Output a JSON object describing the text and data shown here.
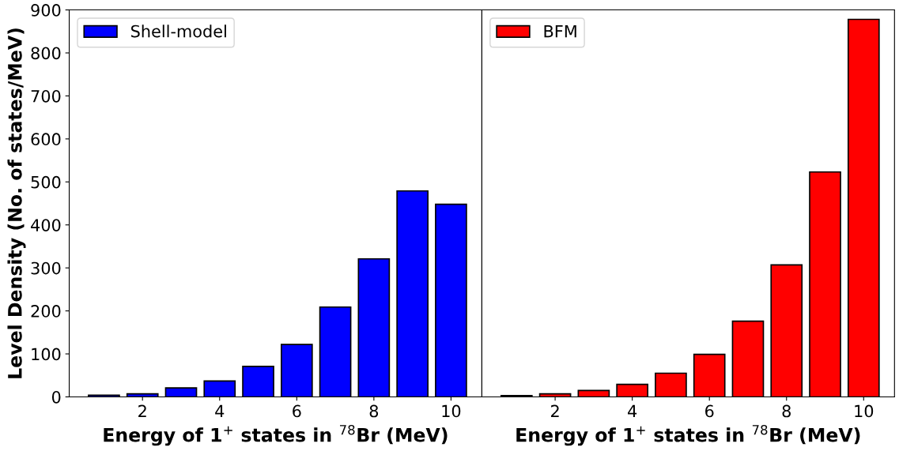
{
  "chart_data": [
    {
      "type": "bar",
      "x": [
        1,
        2,
        3,
        4,
        5,
        6,
        7,
        8,
        9,
        10
      ],
      "xlabel": "Energy of 1$^{+}$ states in $^{78}$Br (MeV)",
      "ylabel": "Level Density (No. of states/MeV)",
      "series": [
        {
          "name": "Shell-model",
          "color": "#0000ff",
          "values": [
            4,
            7,
            21,
            37,
            71,
            122,
            209,
            321,
            479,
            448
          ]
        }
      ],
      "xlim": [
        0.1,
        10.8
      ],
      "xticks": [
        2,
        4,
        6,
        8,
        10
      ],
      "ylim": [
        0,
        900
      ],
      "yticks": [
        0,
        100,
        200,
        300,
        400,
        500,
        600,
        700,
        800,
        900
      ],
      "legend": "top left"
    },
    {
      "type": "bar",
      "x": [
        1,
        2,
        3,
        4,
        5,
        6,
        7,
        8,
        9,
        10
      ],
      "xlabel": "Energy of 1$^{+}$ states in $^{78}$Br (MeV)",
      "series": [
        {
          "name": "BFM",
          "color": "#ff0000",
          "values": [
            3,
            7,
            15,
            29,
            55,
            99,
            176,
            307,
            523,
            878
          ]
        }
      ],
      "xlim": [
        0.1,
        10.8
      ],
      "xticks": [
        2,
        4,
        6,
        8,
        10
      ],
      "ylim": [
        0,
        900
      ],
      "tick_labels": "x",
      "legend": "top left"
    }
  ]
}
